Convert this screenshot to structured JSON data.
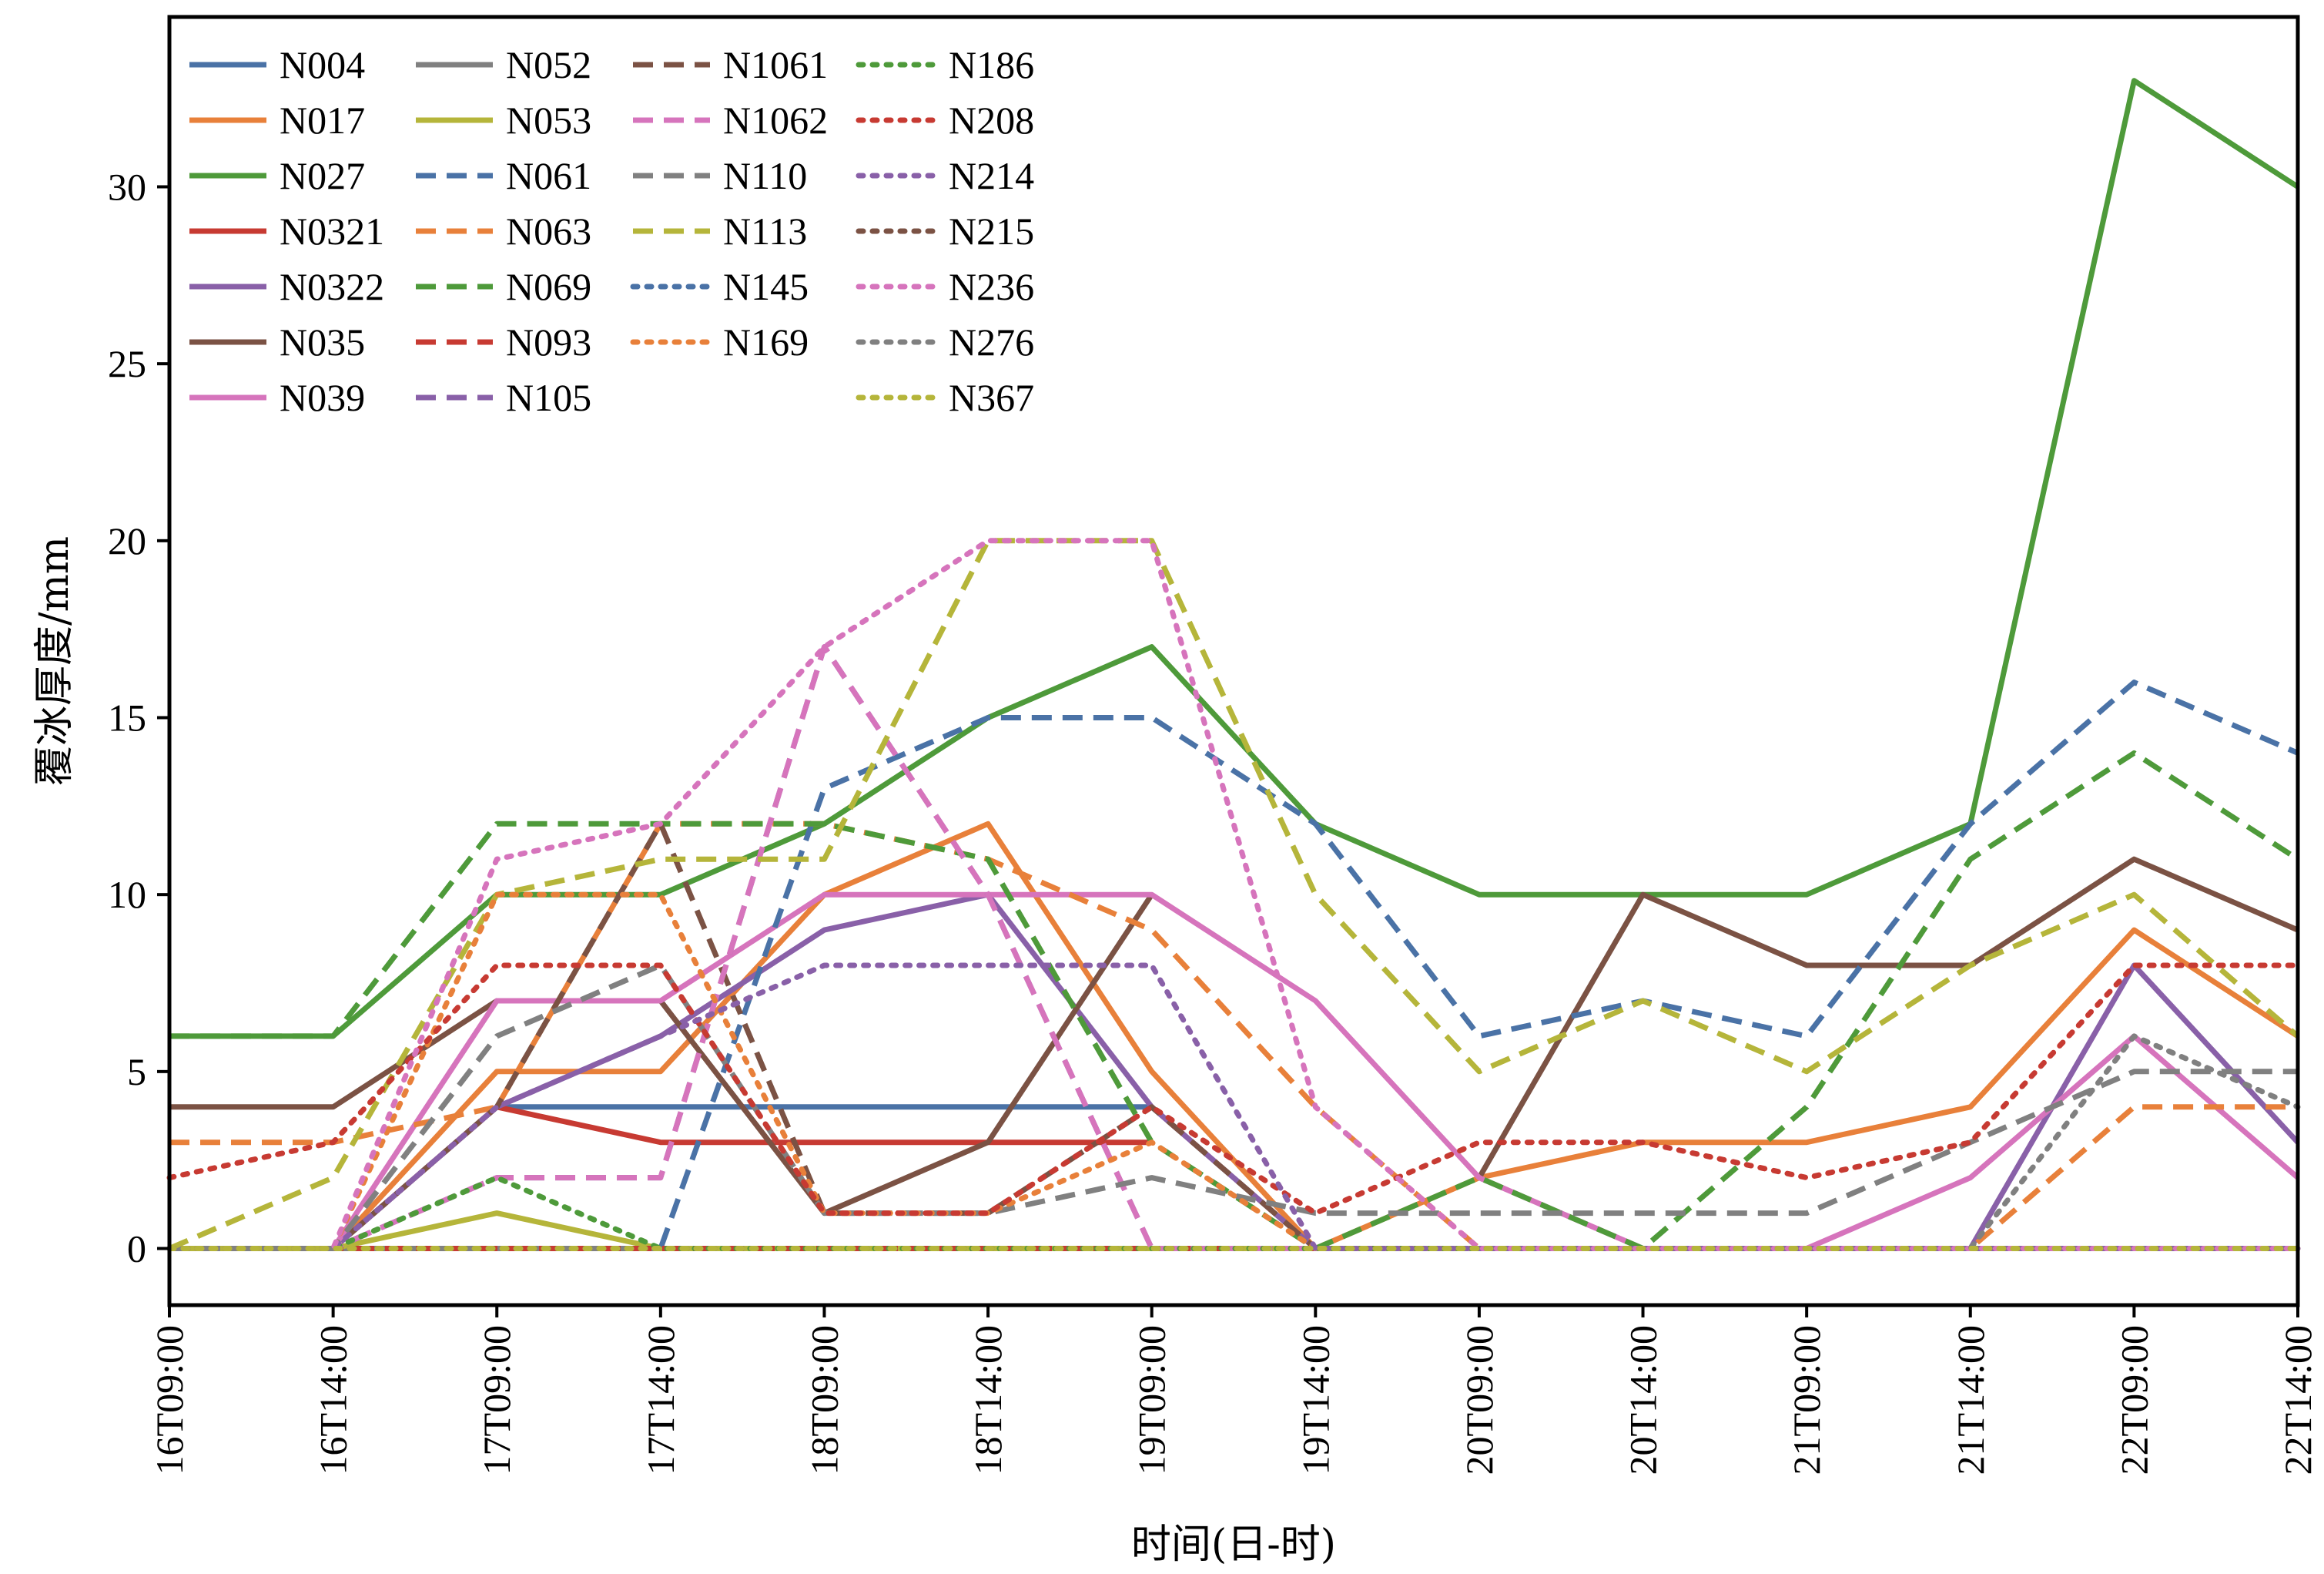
{
  "chart_data": {
    "type": "line",
    "xlabel": "时间(日-时)",
    "ylabel": "覆冰厚度/mm",
    "categories": [
      "16T09:00",
      "16T14:00",
      "17T09:00",
      "17T14:00",
      "18T09:00",
      "18T14:00",
      "19T09:00",
      "19T14:00",
      "20T09:00",
      "20T14:00",
      "21T09:00",
      "21T14:00",
      "22T09:00",
      "22T14:00"
    ],
    "ylim": [
      -1.6,
      34.8
    ],
    "yticks": [
      0,
      5,
      10,
      15,
      20,
      25,
      30
    ],
    "grid": false,
    "legend_position": "top-left",
    "series": [
      {
        "name": "N004",
        "color": "#4a72a6",
        "dash": "solid",
        "values": [
          0,
          0,
          4,
          4,
          4,
          4,
          4,
          null,
          null,
          null,
          null,
          null,
          null,
          null
        ]
      },
      {
        "name": "N017",
        "color": "#e8803a",
        "dash": "solid",
        "values": [
          0,
          0,
          5,
          5,
          10,
          12,
          5,
          0,
          2,
          3,
          3,
          4,
          9,
          6
        ]
      },
      {
        "name": "N027",
        "color": "#4e9a3a",
        "dash": "solid",
        "values": [
          6,
          6,
          10,
          10,
          12,
          15,
          17,
          12,
          10,
          10,
          10,
          12,
          33,
          30
        ]
      },
      {
        "name": "N0321",
        "color": "#c73a32",
        "dash": "solid",
        "values": [
          0,
          0,
          4,
          3,
          3,
          3,
          3,
          null,
          null,
          null,
          null,
          null,
          null,
          null
        ]
      },
      {
        "name": "N0322",
        "color": "#8960a8",
        "dash": "solid",
        "values": [
          0,
          0,
          4,
          6,
          9,
          10,
          4,
          0,
          0,
          0,
          0,
          0,
          8,
          3
        ]
      },
      {
        "name": "N035",
        "color": "#7b5244",
        "dash": "solid",
        "values": [
          4,
          4,
          7,
          7,
          1,
          3,
          10,
          null,
          2,
          10,
          8,
          8,
          11,
          9
        ]
      },
      {
        "name": "N039",
        "color": "#d674bc",
        "dash": "solid",
        "values": [
          0,
          0,
          7,
          7,
          10,
          10,
          10,
          7,
          2,
          0,
          0,
          2,
          6,
          2
        ]
      },
      {
        "name": "N052",
        "color": "#808080",
        "dash": "solid",
        "values": [
          0,
          0,
          0,
          0,
          0,
          0,
          0,
          0,
          0,
          0,
          0,
          0,
          0,
          0
        ]
      },
      {
        "name": "N053",
        "color": "#b5b53a",
        "dash": "solid",
        "values": [
          0,
          0,
          1,
          0,
          0,
          0,
          0,
          0,
          0,
          0,
          0,
          0,
          0,
          0
        ]
      },
      {
        "name": "N061",
        "color": "#4a72a6",
        "dash": "dashed",
        "values": [
          0,
          0,
          0,
          0,
          13,
          15,
          15,
          12,
          6,
          7,
          6,
          12,
          16,
          14
        ]
      },
      {
        "name": "N063",
        "color": "#e8803a",
        "dash": "dashed",
        "values": [
          3,
          3,
          4,
          12,
          12,
          11,
          9,
          4,
          0,
          0,
          0,
          0,
          4,
          4
        ]
      },
      {
        "name": "N069",
        "color": "#4e9a3a",
        "dash": "dashed",
        "values": [
          6,
          6,
          12,
          12,
          12,
          11,
          3,
          0,
          2,
          0,
          4,
          11,
          14,
          11
        ]
      },
      {
        "name": "N093",
        "color": "#c73a32",
        "dash": "dashed",
        "values": [
          0,
          0,
          0,
          0,
          0,
          0,
          0,
          0,
          0,
          0,
          0,
          0,
          0,
          0
        ]
      },
      {
        "name": "N105",
        "color": "#8960a8",
        "dash": "dashed",
        "values": [
          0,
          0,
          2,
          2,
          17,
          10,
          0,
          0,
          0,
          0,
          0,
          0,
          0,
          0
        ]
      },
      {
        "name": "N1061",
        "color": "#7b5244",
        "dash": "dashed",
        "values": [
          0,
          0,
          4,
          12,
          1,
          1,
          4,
          0,
          0,
          0,
          0,
          0,
          0,
          0
        ]
      },
      {
        "name": "N1062",
        "color": "#d674bc",
        "dash": "dashed",
        "values": [
          0,
          0,
          2,
          2,
          17,
          10,
          0,
          0,
          0,
          0,
          0,
          0,
          0,
          0
        ]
      },
      {
        "name": "N110",
        "color": "#808080",
        "dash": "dashed",
        "values": [
          0,
          0,
          6,
          8,
          1,
          1,
          2,
          1,
          1,
          1,
          1,
          3,
          5,
          5
        ]
      },
      {
        "name": "N113",
        "color": "#b5b53a",
        "dash": "dashed",
        "values": [
          0,
          2,
          10,
          11,
          11,
          20,
          20,
          10,
          5,
          7,
          5,
          8,
          10,
          6
        ]
      },
      {
        "name": "N145",
        "color": "#4a72a6",
        "dash": "dotted",
        "values": [
          0,
          0,
          0,
          0,
          0,
          0,
          0,
          0,
          0,
          0,
          0,
          0,
          0,
          0
        ]
      },
      {
        "name": "N169",
        "color": "#e8803a",
        "dash": "dotted",
        "values": [
          0,
          0,
          10,
          10,
          1,
          1,
          3,
          0,
          0,
          0,
          0,
          0,
          0,
          0
        ]
      },
      {
        "name": "N186",
        "color": "#4e9a3a",
        "dash": "dotted",
        "values": [
          0,
          0,
          2,
          0,
          0,
          0,
          0,
          0,
          0,
          0,
          0,
          0,
          0,
          0
        ]
      },
      {
        "name": "N208",
        "color": "#c73a32",
        "dash": "dotted",
        "values": [
          2,
          3,
          8,
          8,
          1,
          1,
          4,
          1,
          3,
          3,
          2,
          3,
          8,
          8
        ]
      },
      {
        "name": "N214",
        "color": "#8960a8",
        "dash": "dotted",
        "values": [
          0,
          0,
          4,
          6,
          8,
          8,
          8,
          0,
          0,
          0,
          0,
          0,
          0,
          0
        ]
      },
      {
        "name": "N215",
        "color": "#7b5244",
        "dash": "dotted",
        "values": [
          0,
          0,
          0,
          0,
          0,
          0,
          0,
          0,
          0,
          0,
          0,
          0,
          0,
          0
        ]
      },
      {
        "name": "N236",
        "color": "#d674bc",
        "dash": "dotted",
        "values": [
          0,
          0,
          11,
          12,
          17,
          20,
          20,
          4,
          0,
          0,
          0,
          0,
          0,
          0
        ]
      },
      {
        "name": "N276",
        "color": "#808080",
        "dash": "dotted",
        "values": [
          0,
          0,
          0,
          0,
          0,
          0,
          0,
          0,
          0,
          0,
          0,
          0,
          6,
          4
        ]
      },
      {
        "name": "N367",
        "color": "#b5b53a",
        "dash": "dotted",
        "values": [
          0,
          0,
          0,
          0,
          0,
          0,
          0,
          0,
          0,
          0,
          0,
          0,
          0,
          0
        ]
      }
    ]
  }
}
